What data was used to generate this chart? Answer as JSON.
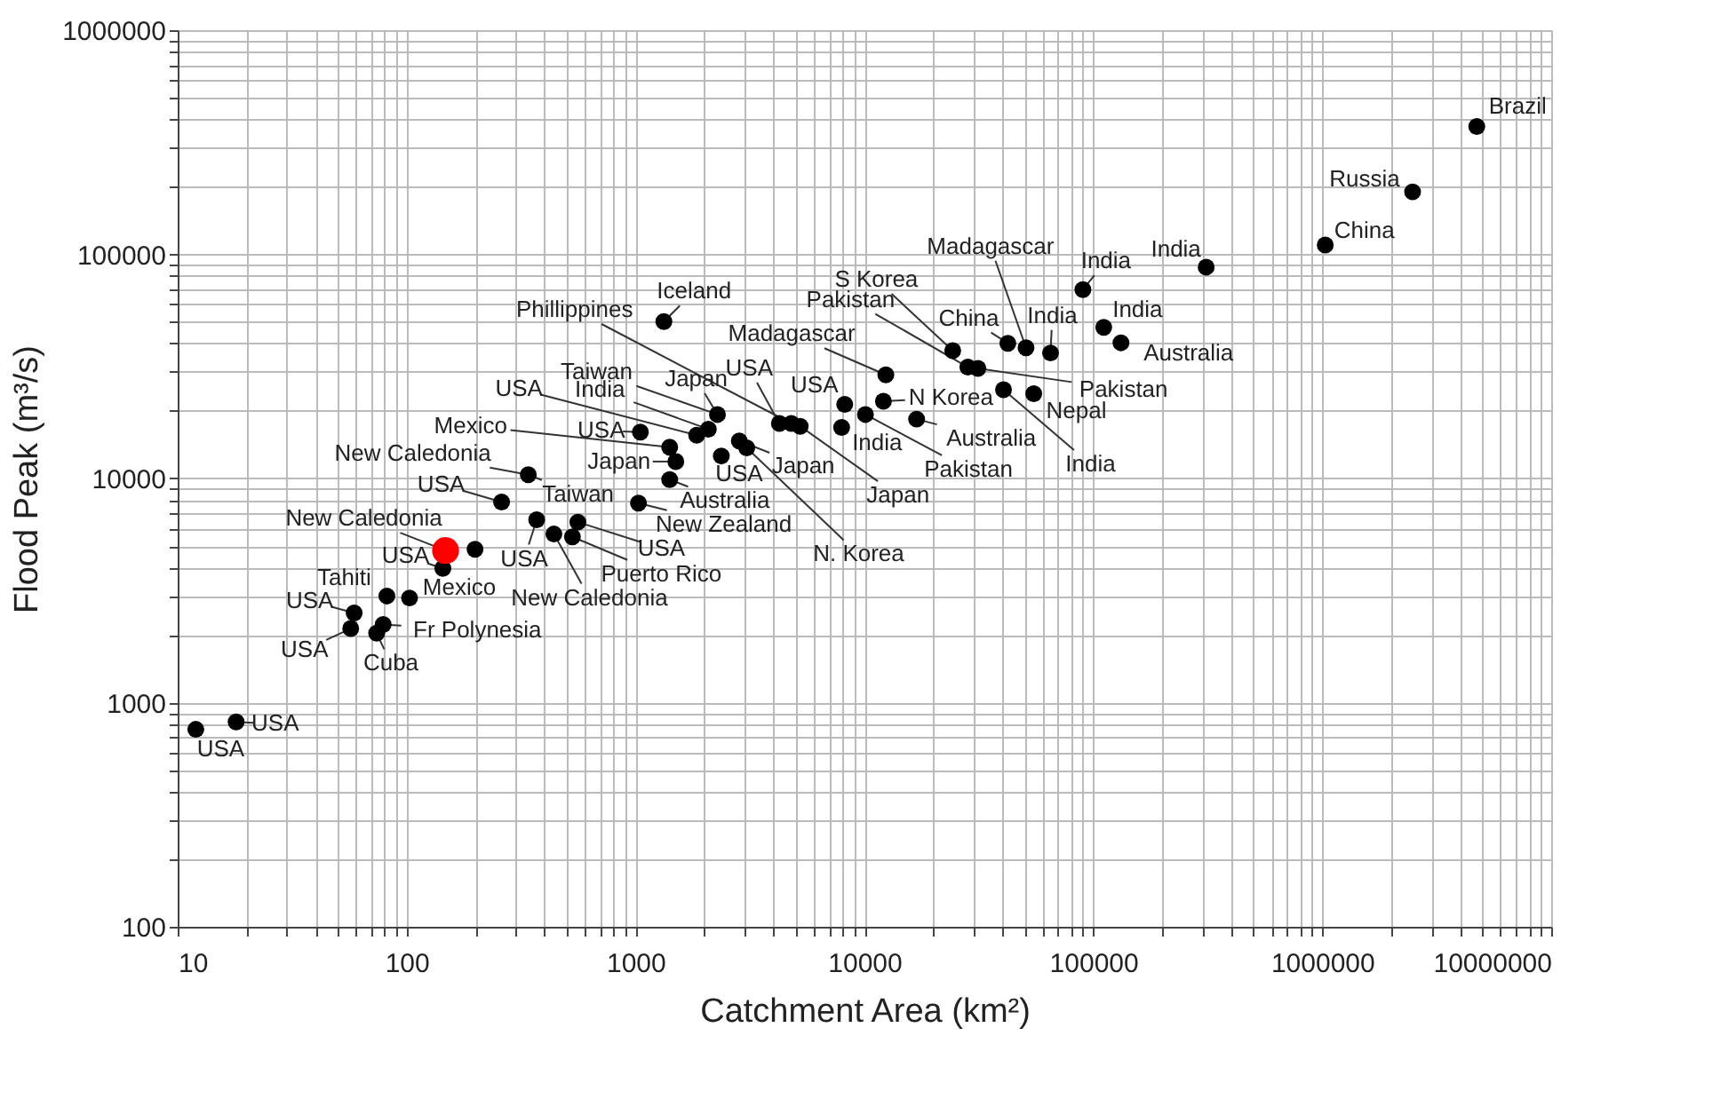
{
  "chart_data": {
    "type": "scatter",
    "xlabel": "Catchment Area (km²)",
    "ylabel": "Flood Peak (m³/s)",
    "log": "xy",
    "grid": true,
    "marker": "circle",
    "xlim": [
      10,
      10000000
    ],
    "ylim": [
      100,
      1000000
    ],
    "xticks": [
      10,
      100,
      1000,
      10000,
      100000,
      1000000,
      10000000
    ],
    "yticks": [
      100,
      1000,
      10000,
      100000,
      1000000
    ],
    "series": [
      {
        "color": "#000000",
        "x": [
          12,
          18,
          199,
          144,
          82,
          103,
          59,
          57,
          79,
          74,
          340,
          260,
          370,
          440,
          530,
          560,
          1030,
          1330,
          1050,
          1410,
          1500,
          1410,
          1850,
          2080,
          2280,
          2370,
          2840,
          3060,
          4250,
          4790,
          5240,
          7950,
          8200,
          10100,
          12100,
          12400,
          16900,
          24300,
          28300,
          31300,
          42300,
          50800,
          65000,
          40500,
          54900,
          90000,
          111000,
          132000,
          311000,
          1030000,
          2480000,
          4730000
        ],
        "values": [
          760,
          820,
          4830,
          3970,
          2990,
          2930,
          2510,
          2140,
          2230,
          2040,
          10400,
          7850,
          6540,
          5650,
          5490,
          6390,
          7760,
          50100,
          16100,
          13800,
          11900,
          9890,
          15600,
          16600,
          19300,
          12600,
          14700,
          13700,
          17600,
          17600,
          17100,
          16900,
          21400,
          19300,
          22100,
          29000,
          18400,
          37200,
          31400,
          31000,
          40100,
          38300,
          36300,
          24900,
          23900,
          69600,
          47200,
          40300,
          87700,
          110000,
          190000,
          372000
        ]
      },
      {
        "color": "#ff0000",
        "x": [
          148
        ],
        "values": [
          4770
        ]
      }
    ],
    "annotations": [
      {
        "text": "Brazil",
        "x": 4730000,
        "y": 372000
      },
      {
        "text": "Russia",
        "x": 2480000,
        "y": 190000
      },
      {
        "text": "China",
        "x": 1030000,
        "y": 110000
      },
      {
        "text": "India",
        "x": 311000,
        "y": 87700
      },
      {
        "text": "India",
        "x": 90000,
        "y": 69600
      },
      {
        "text": "India",
        "x": 111000,
        "y": 47200
      },
      {
        "text": "Australia",
        "x": 132000,
        "y": 40300
      },
      {
        "text": "Madagascar",
        "x": 50800,
        "y": 38300
      },
      {
        "text": "China",
        "x": 42300,
        "y": 40100
      },
      {
        "text": "India",
        "x": 65000,
        "y": 36300
      },
      {
        "text": "Pakistan",
        "x": 31300,
        "y": 31000
      },
      {
        "text": "Nepal",
        "x": 54900,
        "y": 23900
      },
      {
        "text": "India",
        "x": 40500,
        "y": 24900
      },
      {
        "text": "N Korea",
        "x": 12100,
        "y": 22100
      },
      {
        "text": "Australia",
        "x": 16900,
        "y": 18400
      },
      {
        "text": "Pakistan",
        "x": 10100,
        "y": 19300
      },
      {
        "text": "Japan",
        "x": 5240,
        "y": 17100
      },
      {
        "text": "S Korea",
        "x": 24300,
        "y": 37200
      },
      {
        "text": "Pakistan",
        "x": 28300,
        "y": 31400
      },
      {
        "text": "Madagascar",
        "x": 12400,
        "y": 29000
      },
      {
        "text": "USA",
        "x": 4250,
        "y": 17600
      },
      {
        "text": "USA",
        "x": 8200,
        "y": 21400
      },
      {
        "text": "India",
        "x": 7950,
        "y": 16900
      },
      {
        "text": "Iceland",
        "x": 1330,
        "y": 50100
      },
      {
        "text": "Phillippines",
        "x": 4790,
        "y": 17600
      },
      {
        "text": "Taiwan",
        "x": 2280,
        "y": 19300
      },
      {
        "text": "India",
        "x": 2080,
        "y": 16600
      },
      {
        "text": "Japan",
        "x": 2280,
        "y": 19300
      },
      {
        "text": "USA",
        "x": 1850,
        "y": 15600
      },
      {
        "text": "USA",
        "x": 1050,
        "y": 16100
      },
      {
        "text": "Mexico",
        "x": 1410,
        "y": 13800
      },
      {
        "text": "Japan",
        "x": 1500,
        "y": 11900
      },
      {
        "text": "USA",
        "x": 2370,
        "y": 12600
      },
      {
        "text": "Japan",
        "x": 2840,
        "y": 14700
      },
      {
        "text": "Australia",
        "x": 1410,
        "y": 9890
      },
      {
        "text": "New Zealand",
        "x": 1030,
        "y": 7760
      },
      {
        "text": "N. Korea",
        "x": 3060,
        "y": 13700
      },
      {
        "text": "Taiwan",
        "x": 340,
        "y": 10400
      },
      {
        "text": "USA",
        "x": 560,
        "y": 6390
      },
      {
        "text": "Puerto Rico",
        "x": 530,
        "y": 5490
      },
      {
        "text": "New Caledonia",
        "x": 440,
        "y": 5650
      },
      {
        "text": "USA",
        "x": 370,
        "y": 6540
      },
      {
        "text": "New Caledonia",
        "x": 340,
        "y": 10400
      },
      {
        "text": "USA",
        "x": 260,
        "y": 7850
      },
      {
        "text": "New Caledonia",
        "x": 148,
        "y": 4770
      },
      {
        "text": "USA",
        "x": 144,
        "y": 3970
      },
      {
        "text": "Tahiti",
        "x": 82,
        "y": 2990
      },
      {
        "text": "Mexico",
        "x": 103,
        "y": 2930
      },
      {
        "text": "USA",
        "x": 59,
        "y": 2510
      },
      {
        "text": "Fr Polynesia",
        "x": 79,
        "y": 2230
      },
      {
        "text": "USA",
        "x": 57,
        "y": 2140
      },
      {
        "text": "Cuba",
        "x": 74,
        "y": 2040
      },
      {
        "text": "USA",
        "x": 18,
        "y": 820
      },
      {
        "text": "USA",
        "x": 12,
        "y": 760
      }
    ]
  }
}
